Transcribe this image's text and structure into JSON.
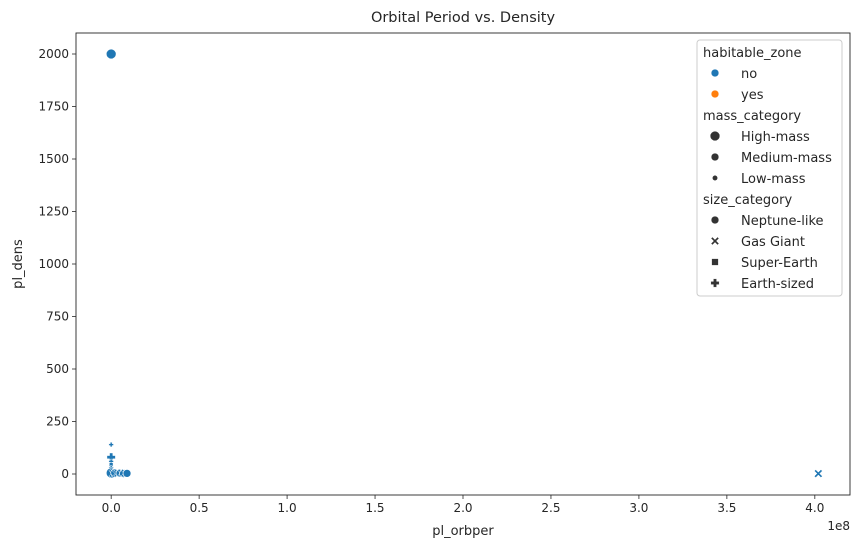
{
  "chart_data": {
    "type": "scatter",
    "title": "Orbital Period vs. Density",
    "xlabel": "pl_orbper",
    "ylabel": "pl_dens",
    "x_offset_text": "1e8",
    "xlim": [
      -0.2,
      4.2
    ],
    "ylim": [
      -100,
      2100
    ],
    "x_ticks": [
      0.0,
      0.5,
      1.0,
      1.5,
      2.0,
      2.5,
      3.0,
      3.5,
      4.0
    ],
    "x_tick_labels": [
      "0.0",
      "0.5",
      "1.0",
      "1.5",
      "2.0",
      "2.5",
      "3.0",
      "3.5",
      "4.0"
    ],
    "y_ticks": [
      0,
      250,
      500,
      750,
      1000,
      1250,
      1500,
      1750,
      2000
    ],
    "y_tick_labels": [
      "0",
      "250",
      "500",
      "750",
      "1000",
      "1250",
      "1500",
      "1750",
      "2000"
    ],
    "grid": false,
    "legend_position": "upper-right",
    "legend": {
      "groups": [
        {
          "title": "habitable_zone",
          "entries": [
            {
              "label": "no",
              "color": "#1f77b4",
              "marker": "circle",
              "size": "medium"
            },
            {
              "label": "yes",
              "color": "#ff7f0e",
              "marker": "circle",
              "size": "medium"
            }
          ]
        },
        {
          "title": "mass_category",
          "entries": [
            {
              "label": "High-mass",
              "color": "#333333",
              "marker": "circle",
              "size": "large"
            },
            {
              "label": "Medium-mass",
              "color": "#333333",
              "marker": "circle",
              "size": "medium"
            },
            {
              "label": "Low-mass",
              "color": "#333333",
              "marker": "circle",
              "size": "small"
            }
          ]
        },
        {
          "title": "size_category",
          "entries": [
            {
              "label": "Neptune-like",
              "color": "#333333",
              "marker": "circle",
              "size": "medium"
            },
            {
              "label": "Gas Giant",
              "color": "#333333",
              "marker": "x",
              "size": "medium"
            },
            {
              "label": "Super-Earth",
              "color": "#333333",
              "marker": "square",
              "size": "medium"
            },
            {
              "label": "Earth-sized",
              "color": "#333333",
              "marker": "plus",
              "size": "medium"
            }
          ]
        }
      ]
    },
    "points": [
      {
        "x": 0.0,
        "y": 2000,
        "habitable_zone": "no",
        "mass_category": "High-mass",
        "size_category": "Neptune-like"
      },
      {
        "x": 4.02,
        "y": 2,
        "habitable_zone": "no",
        "mass_category": "Medium-mass",
        "size_category": "Gas Giant"
      },
      {
        "x": 0.0,
        "y": 140,
        "habitable_zone": "no",
        "mass_category": "Low-mass",
        "size_category": "Earth-sized"
      },
      {
        "x": 0.0,
        "y": 80,
        "habitable_zone": "no",
        "mass_category": "Medium-mass",
        "size_category": "Earth-sized"
      },
      {
        "x": 0.0,
        "y": 60,
        "habitable_zone": "no",
        "mass_category": "Low-mass",
        "size_category": "Earth-sized"
      },
      {
        "x": 0.0,
        "y": 45,
        "habitable_zone": "no",
        "mass_category": "Low-mass",
        "size_category": "Super-Earth"
      },
      {
        "x": 0.0,
        "y": 30,
        "habitable_zone": "no",
        "mass_category": "Low-mass",
        "size_category": "Earth-sized"
      },
      {
        "x": 0.0,
        "y": 20,
        "habitable_zone": "no",
        "mass_category": "Low-mass",
        "size_category": "Super-Earth"
      },
      {
        "x": 0.0,
        "y": 10,
        "habitable_zone": "no",
        "mass_category": "Medium-mass",
        "size_category": "Neptune-like"
      },
      {
        "x": 0.0,
        "y": 5,
        "habitable_zone": "no",
        "mass_category": "High-mass",
        "size_category": "Neptune-like"
      },
      {
        "x": 0.01,
        "y": 3,
        "habitable_zone": "no",
        "mass_category": "Medium-mass",
        "size_category": "Gas Giant"
      },
      {
        "x": 0.02,
        "y": 6,
        "habitable_zone": "no",
        "mass_category": "Medium-mass",
        "size_category": "Neptune-like"
      },
      {
        "x": 0.03,
        "y": 2,
        "habitable_zone": "no",
        "mass_category": "Medium-mass",
        "size_category": "Gas Giant"
      },
      {
        "x": 0.04,
        "y": 4,
        "habitable_zone": "no",
        "mass_category": "Medium-mass",
        "size_category": "Gas Giant"
      },
      {
        "x": 0.05,
        "y": 3,
        "habitable_zone": "no",
        "mass_category": "Medium-mass",
        "size_category": "Neptune-like"
      },
      {
        "x": 0.06,
        "y": 5,
        "habitable_zone": "no",
        "mass_category": "Medium-mass",
        "size_category": "Gas Giant"
      },
      {
        "x": 0.07,
        "y": 2,
        "habitable_zone": "no",
        "mass_category": "Medium-mass",
        "size_category": "Neptune-like"
      },
      {
        "x": 0.08,
        "y": 4,
        "habitable_zone": "no",
        "mass_category": "Medium-mass",
        "size_category": "Gas Giant"
      },
      {
        "x": 0.09,
        "y": 3,
        "habitable_zone": "no",
        "mass_category": "Medium-mass",
        "size_category": "Neptune-like"
      }
    ]
  }
}
